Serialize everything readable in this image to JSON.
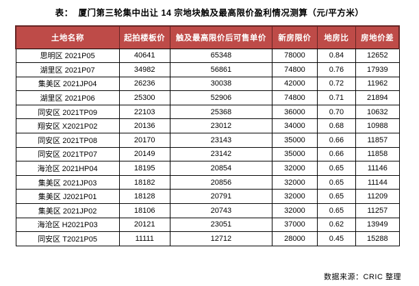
{
  "page": {
    "title": "表：  厦门第三轮集中出让 14 宗地块触及最高限价盈利情况测算（元/平方米）",
    "source": "数据来源：CRIC 整理"
  },
  "colors": {
    "header_bg": "#BE4B48",
    "header_text": "#FFFFFF",
    "header_border": "#632423",
    "grid_border": "#000000",
    "page_bg": "#FFFFFF"
  },
  "table": {
    "columns": [
      "土地名称",
      "起拍楼板价",
      "触及最高限价后可售单价",
      "新房限价",
      "地房比",
      "房地价差"
    ],
    "rows": [
      [
        "思明区 2021P05",
        "40641",
        "65348",
        "78000",
        "0.84",
        "12652"
      ],
      [
        "湖里区 2021P07",
        "34982",
        "56861",
        "74800",
        "0.76",
        "17939"
      ],
      [
        "集美区 2021JP04",
        "26236",
        "30038",
        "42000",
        "0.72",
        "11962"
      ],
      [
        "湖里区 2021P06",
        "25300",
        "52906",
        "74800",
        "0.71",
        "21894"
      ],
      [
        "同安区 2021TP09",
        "22103",
        "25368",
        "36000",
        "0.70",
        "10632"
      ],
      [
        "翔安区 X2021P02",
        "20136",
        "23012",
        "34000",
        "0.68",
        "10988"
      ],
      [
        "同安区 2021TP08",
        "20170",
        "23143",
        "35000",
        "0.66",
        "11857"
      ],
      [
        "同安区 2021TP07",
        "20149",
        "23142",
        "35000",
        "0.66",
        "11858"
      ],
      [
        "海沧区 2021HP04",
        "18195",
        "20854",
        "32000",
        "0.65",
        "11146"
      ],
      [
        "集美区 2021JP03",
        "18182",
        "20856",
        "32000",
        "0.65",
        "11144"
      ],
      [
        "集美区 J2021P01",
        "18128",
        "20791",
        "32000",
        "0.65",
        "11209"
      ],
      [
        "集美区 2021JP02",
        "18106",
        "20743",
        "32000",
        "0.65",
        "11257"
      ],
      [
        "海沧区 H2021P03",
        "20121",
        "23051",
        "37000",
        "0.62",
        "13949"
      ],
      [
        "同安区 T2021P05",
        "11111",
        "12712",
        "28000",
        "0.45",
        "15288"
      ]
    ]
  }
}
